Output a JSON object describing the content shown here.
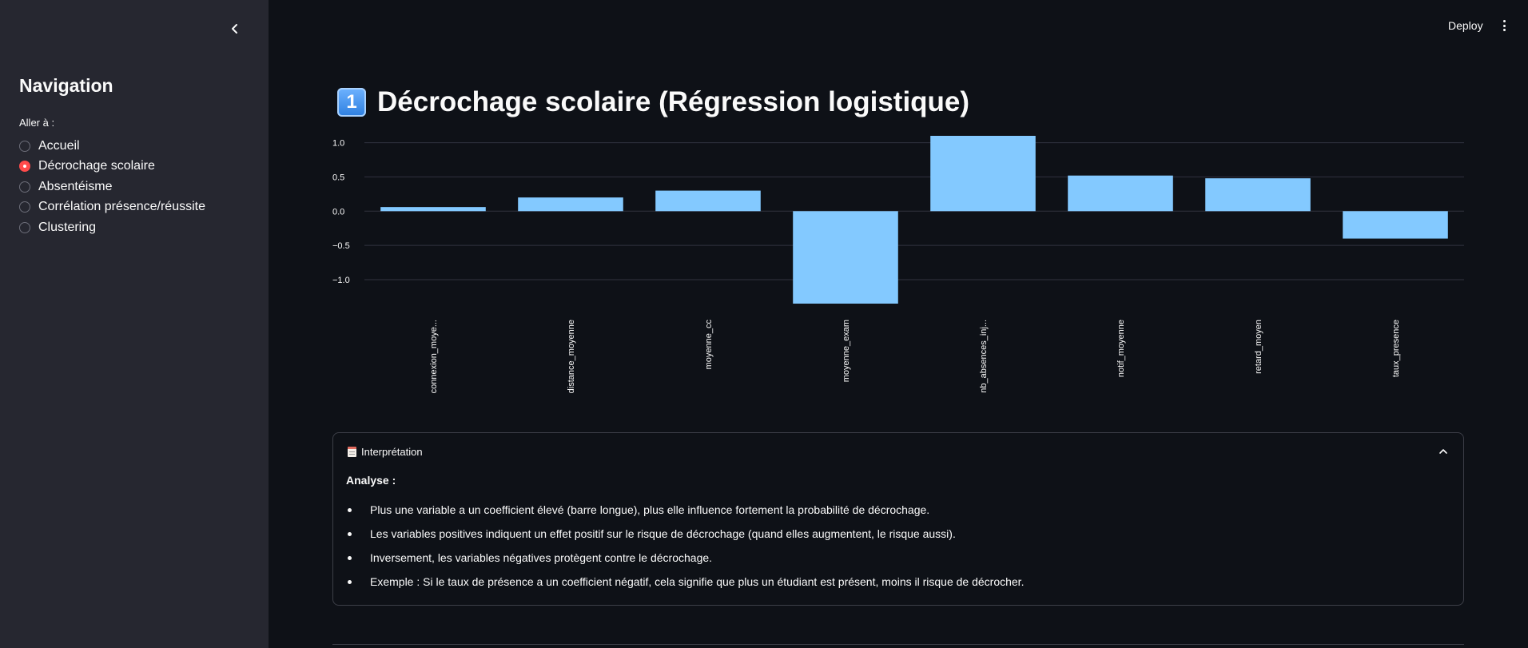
{
  "sidebar": {
    "title": "Navigation",
    "radio_label": "Aller à :",
    "options": [
      {
        "label": "Accueil",
        "selected": false
      },
      {
        "label": "Décrochage scolaire",
        "selected": true
      },
      {
        "label": "Absentéisme",
        "selected": false
      },
      {
        "label": "Corrélation présence/réussite",
        "selected": false
      },
      {
        "label": "Clustering",
        "selected": false
      }
    ],
    "collapse_icon": "chevron-left-icon"
  },
  "header": {
    "deploy_label": "Deploy",
    "menu_icon": "kebab-menu-icon"
  },
  "main": {
    "title_badge": "1",
    "title": "Décrochage scolaire (Régression logistique)"
  },
  "chart_data": {
    "type": "bar",
    "categories": [
      "connexion_moye...",
      "distance_moyenne",
      "moyenne_cc",
      "moyenne_exam",
      "nb_absences_inj...",
      "notif_moyenne",
      "retard_moyen",
      "taux_presence"
    ],
    "values": [
      0.06,
      0.2,
      0.3,
      -1.35,
      1.1,
      0.52,
      0.48,
      -0.4
    ],
    "yticks": [
      "1.0",
      "0.5",
      "0.0",
      "−0.5",
      "−1.0"
    ],
    "ytick_values": [
      1.0,
      0.5,
      0.0,
      -0.5,
      -1.0
    ],
    "ylim": [
      -1.35,
      1.1
    ],
    "bar_color": "#83c9ff",
    "grid": true
  },
  "expander": {
    "icon": "page-document-icon",
    "label": "Interprétation",
    "expanded": true,
    "heading": "Analyse :",
    "bullets": [
      "Plus une variable a un coefficient élevé (barre longue), plus elle influence fortement la probabilité de décrochage.",
      "Les variables positives indiquent un effet positif sur le risque de décrochage (quand elles augmentent, le risque aussi).",
      "Inversement, les variables négatives protègent contre le décrochage.",
      "Exemple : Si le taux de présence a un coefficient négatif, cela signifie que plus un étudiant est présent, moins il risque de décrocher."
    ]
  },
  "colors": {
    "app_bg": "#0e1117",
    "sidebar_bg": "#262730",
    "accent": "#ff4b4b",
    "text": "#fafafa"
  }
}
